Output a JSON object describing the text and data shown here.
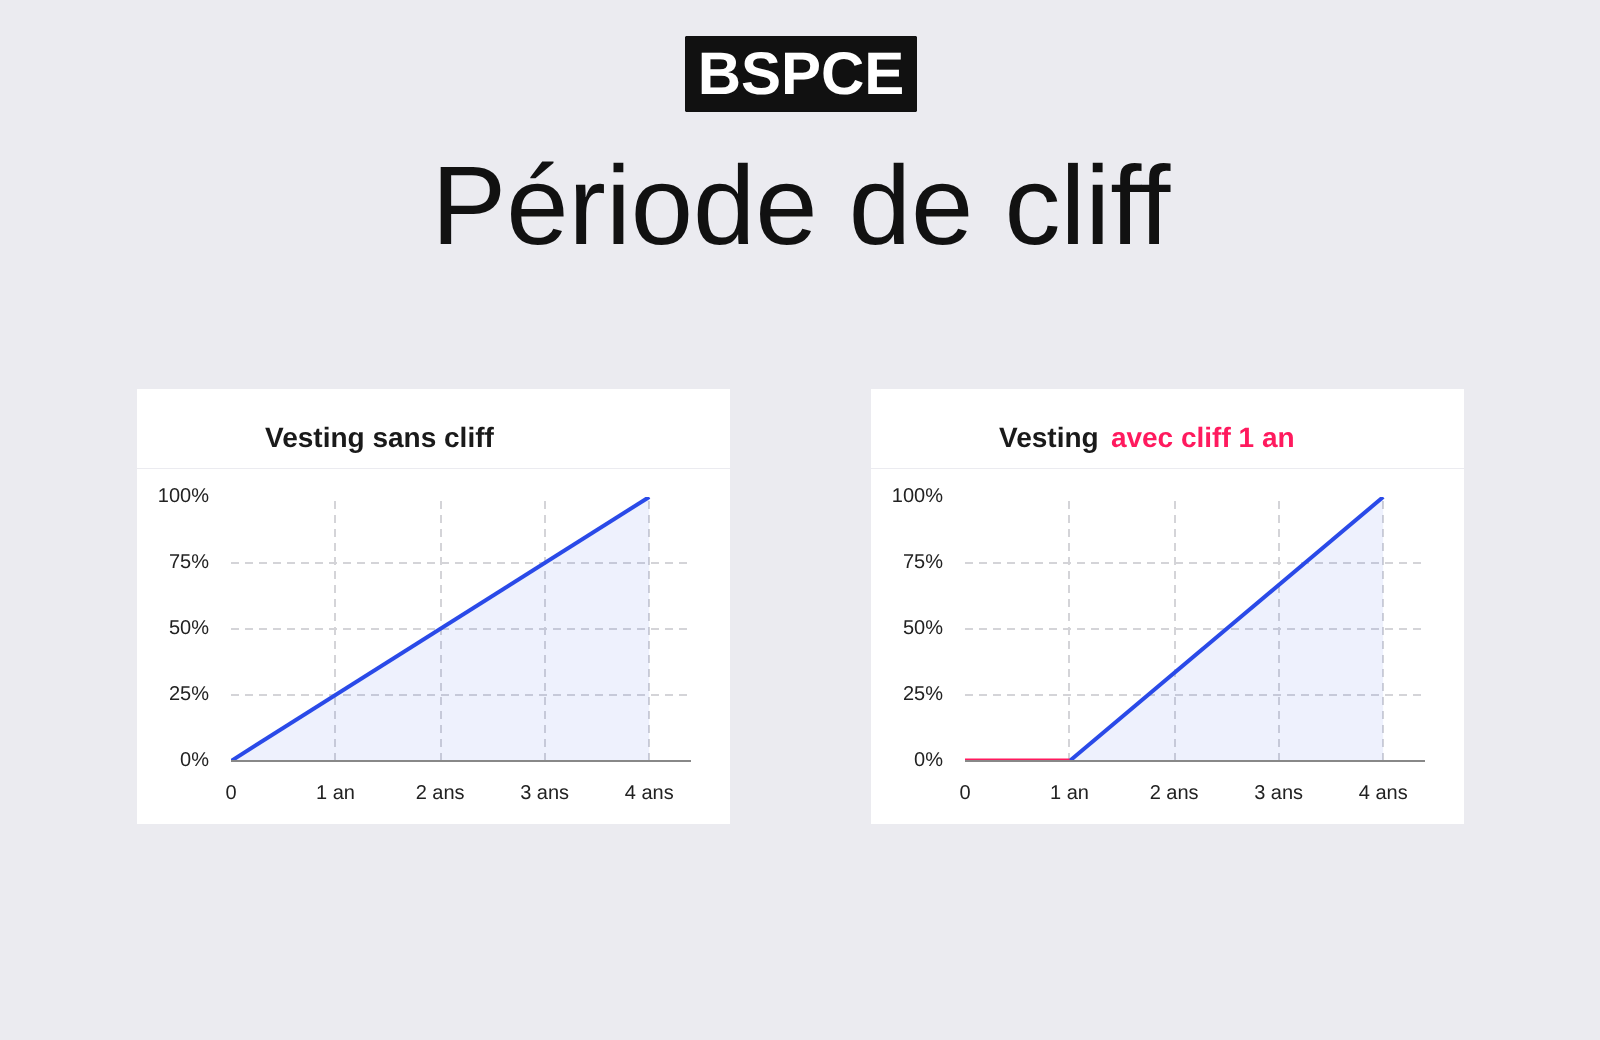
{
  "chart_data": [
    {
      "type": "other",
      "title": "Période de cliff",
      "annotations": [
        "BSPCE"
      ]
    },
    {
      "type": "area",
      "title": "Vesting sans cliff",
      "xlim": [
        0,
        4.4
      ],
      "ylim": [
        0,
        100
      ],
      "xticks": [
        0,
        {
          "value": 1,
          "label": "1 an"
        },
        {
          "value": 2,
          "label": "2 ans"
        },
        {
          "value": 3,
          "label": "3 ans"
        },
        {
          "value": 4,
          "label": "4 ans"
        }
      ],
      "yticks": [
        {
          "value": 0,
          "label": "0%"
        },
        {
          "value": 25,
          "label": "25%"
        },
        {
          "value": 50,
          "label": "50%"
        },
        {
          "value": 75,
          "label": "75%"
        },
        {
          "value": 100,
          "label": "100%"
        }
      ],
      "grid": true,
      "series": [
        {
          "type": "area",
          "color": "#2a4ae8",
          "x": [
            0,
            4
          ],
          "values": [
            0,
            100
          ]
        }
      ]
    },
    {
      "type": "area",
      "title": "Vesting",
      "subtitle": "avec cliff 1 an",
      "xlim": [
        0,
        4.4
      ],
      "ylim": [
        0,
        100
      ],
      "xticks": [
        0,
        {
          "value": 1,
          "label": "1 an"
        },
        {
          "value": 2,
          "label": "2 ans"
        },
        {
          "value": 3,
          "label": "3 ans"
        },
        {
          "value": 4,
          "label": "4 ans"
        }
      ],
      "yticks": [
        {
          "value": 0,
          "label": "0%"
        },
        {
          "value": 25,
          "label": "25%"
        },
        {
          "value": 50,
          "label": "50%"
        },
        {
          "value": 75,
          "label": "75%"
        },
        {
          "value": 100,
          "label": "100%"
        }
      ],
      "grid": true,
      "series": [
        {
          "type": "area",
          "color": "#2a4ae8",
          "x": [
            1,
            4
          ],
          "values": [
            0,
            100
          ]
        },
        {
          "type": "line",
          "color": "#ff1a5e",
          "x": [
            0,
            1
          ],
          "values": [
            0,
            0
          ]
        }
      ]
    }
  ]
}
